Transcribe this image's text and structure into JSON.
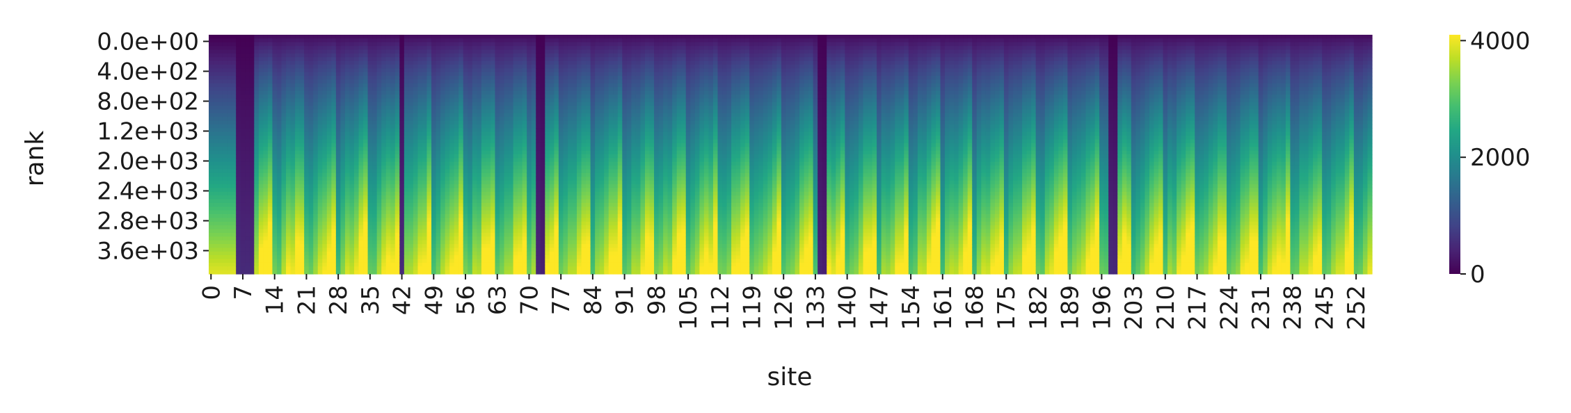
{
  "chart_data": {
    "type": "heatmap",
    "title": "",
    "xlabel": "site",
    "ylabel": "rank",
    "x_tick_labels": [
      "0",
      "7",
      "14",
      "21",
      "28",
      "35",
      "42",
      "49",
      "56",
      "63",
      "70",
      "77",
      "84",
      "91",
      "98",
      "105",
      "112",
      "119",
      "126",
      "133",
      "140",
      "147",
      "154",
      "161",
      "168",
      "175",
      "182",
      "189",
      "196",
      "203",
      "210",
      "217",
      "224",
      "231",
      "238",
      "245",
      "252"
    ],
    "x_tick_sites": [
      0,
      7,
      14,
      21,
      28,
      35,
      42,
      49,
      56,
      63,
      70,
      77,
      84,
      91,
      98,
      105,
      112,
      119,
      126,
      133,
      140,
      147,
      154,
      161,
      168,
      175,
      182,
      189,
      196,
      203,
      210,
      217,
      224,
      231,
      238,
      245,
      252
    ],
    "y_tick_labels": [
      "0.0e+00",
      "4.0e+02",
      "8.0e+02",
      "1.2e+03",
      "2.0e+03",
      "2.4e+03",
      "2.8e+03",
      "3.6e+03"
    ],
    "n_sites": 256,
    "n_rank_rows": 64,
    "colorbar": {
      "colormap": "viridis",
      "min": 0,
      "max": 4100,
      "tick_labels": [
        "0",
        "2000",
        "4000"
      ],
      "tick_values": [
        0,
        2000,
        4000
      ]
    },
    "dark_column_sites": [
      6,
      7,
      8,
      9,
      42,
      72,
      73,
      134,
      135,
      198,
      199
    ],
    "pattern_note_period_sites": 7
  }
}
